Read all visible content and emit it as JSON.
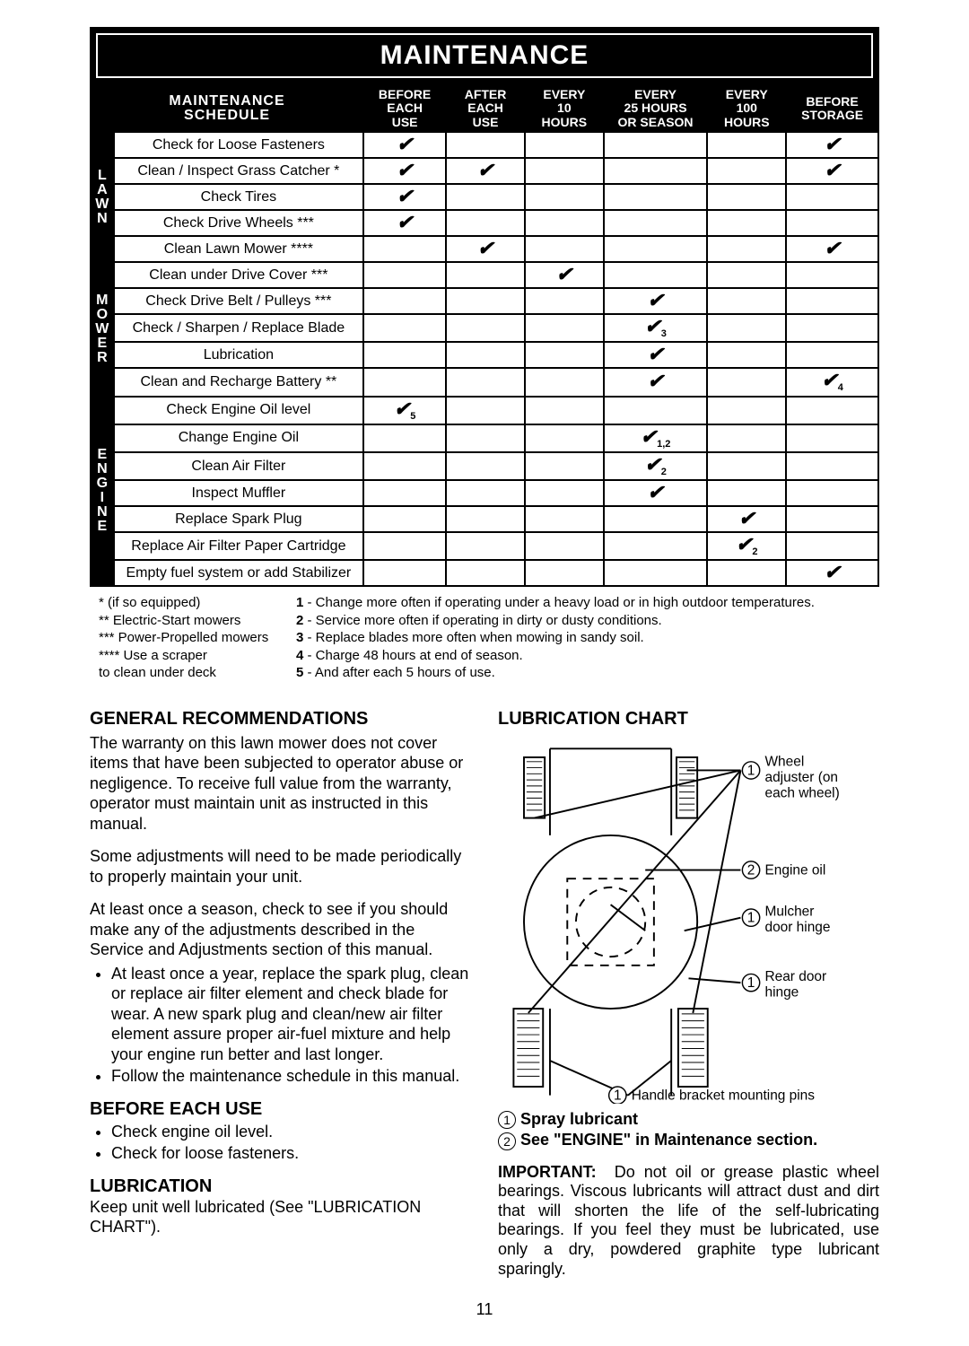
{
  "banner": "MAINTENANCE",
  "schedule": {
    "title_l1": "MAINTENANCE",
    "title_l2": "SCHEDULE",
    "headers": [
      "BEFORE EACH USE",
      "AFTER EACH USE",
      "EVERY 10 HOURS",
      "EVERY 25 HOURS OR SEASON",
      "EVERY 100 HOURS",
      "BEFORE STORAGE"
    ],
    "groups": [
      {
        "label": "L\nA\nW\nN",
        "rows": [
          {
            "task": "Check for Loose Fasteners",
            "marks": [
              "✔",
              "",
              "",
              "",
              "",
              "✔"
            ]
          },
          {
            "task": "Clean / Inspect Grass Catcher *",
            "marks": [
              "✔",
              "✔",
              "",
              "",
              "",
              "✔"
            ]
          },
          {
            "task": "Check Tires",
            "marks": [
              "✔",
              "",
              "",
              "",
              "",
              ""
            ]
          },
          {
            "task": "Check Drive Wheels ***",
            "marks": [
              "✔",
              "",
              "",
              "",
              "",
              ""
            ]
          },
          {
            "task": "Clean Lawn Mower ****",
            "marks": [
              "",
              "✔",
              "",
              "",
              "",
              "✔"
            ]
          }
        ]
      },
      {
        "label": "M\nO\nW\nE\nR",
        "rows": [
          {
            "task": "Clean under Drive Cover ***",
            "marks": [
              "",
              "",
              "✔",
              "",
              "",
              ""
            ]
          },
          {
            "task": "Check Drive Belt / Pulleys ***",
            "marks": [
              "",
              "",
              "",
              "✔",
              "",
              ""
            ]
          },
          {
            "task": "Check / Sharpen / Replace Blade",
            "marks": [
              "",
              "",
              "",
              "✔3",
              "",
              ""
            ]
          },
          {
            "task": "Lubrication",
            "marks": [
              "",
              "",
              "",
              "✔",
              "",
              ""
            ]
          },
          {
            "task": "Clean and Recharge Battery **",
            "marks": [
              "",
              "",
              "",
              "✔",
              "",
              "✔4"
            ]
          }
        ]
      },
      {
        "label": "E\nN\nG\nI\nN\nE",
        "rows": [
          {
            "task": "Check Engine Oil level",
            "marks": [
              "✔5",
              "",
              "",
              "",
              "",
              ""
            ]
          },
          {
            "task": "Change Engine Oil",
            "marks": [
              "",
              "",
              "",
              "✔1,2",
              "",
              ""
            ]
          },
          {
            "task": "Clean Air Filter",
            "marks": [
              "",
              "",
              "",
              "✔2",
              "",
              ""
            ]
          },
          {
            "task": "Inspect Muffler",
            "marks": [
              "",
              "",
              "",
              "✔",
              "",
              ""
            ]
          },
          {
            "task": "Replace Spark Plug",
            "marks": [
              "",
              "",
              "",
              "",
              "✔",
              ""
            ]
          },
          {
            "task": "Replace Air Filter Paper Cartridge",
            "marks": [
              "",
              "",
              "",
              "",
              "✔2",
              ""
            ]
          },
          {
            "task": "Empty fuel system or add Stabilizer",
            "marks": [
              "",
              "",
              "",
              "",
              "",
              "✔"
            ]
          }
        ]
      }
    ]
  },
  "footnotes_left": [
    "* (if so equipped)",
    "** Electric-Start mowers",
    "*** Power-Propelled mowers",
    "**** Use a scraper",
    "       to clean under deck"
  ],
  "footnotes_right": [
    "1 - Change more often if operating under a heavy load or in high outdoor temperatures.",
    "2 - Service more often if operating in dirty or dusty conditions.",
    "3 - Replace blades more often when mowing in sandy soil.",
    "4 - Charge 48 hours at end of season.",
    "5 - And after each 5 hours of use."
  ],
  "left_col": {
    "h_general": "GENERAL RECOMMENDATIONS",
    "p1": "The warranty on this lawn mower does not cover items that have been subjected to operator abuse or negligence. To receive full value from the warranty, operator must maintain unit as instructed in this manual.",
    "p2": "Some adjustments will need to be made periodically to properly maintain your unit.",
    "p3": "At least once a season, check to see if you should make any of the adjustments described in the Service and Adjustments section of this manual.",
    "b1": "At least once a year, replace the spark plug, clean or replace air filter element and check blade for wear. A new spark plug and clean/new air filter element assure proper air-fuel mixture and help your engine run better and last longer.",
    "b2": "Follow the maintenance schedule in this manual.",
    "h_before": "BEFORE EACH USE",
    "before_1": "Check engine oil level.",
    "before_2": "Check for loose fasteners.",
    "h_lube": "LUBRICATION",
    "p_lube": "Keep unit well lubricated (See \"LUBRICATION CHART\")."
  },
  "right_col": {
    "h_chart": "LUBRICATION CHART",
    "labels": {
      "wheel": "Wheel adjuster (on each wheel)",
      "engine": "Engine oil",
      "mulcher": "Mulcher door hinge",
      "rear": "Rear door hinge",
      "handle": "Handle bracket mounting pins"
    },
    "legend1": "Spray lubricant",
    "legend2": "See \"ENGINE\" in Maintenance section.",
    "important_label": "IMPORTANT:",
    "important": "Do not oil or grease plastic wheel bearings. Viscous lubricants will attract dust and dirt that will shorten the life of the self-lubricating bearings. If you feel they must be lubricated, use only a dry, powdered graphite type lubricant sparingly."
  },
  "page": "11"
}
